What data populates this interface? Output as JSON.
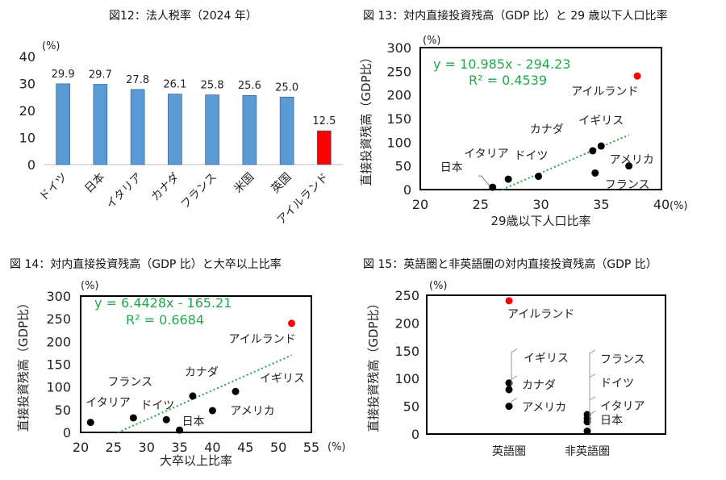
{
  "chart_data": [
    {
      "type": "bar",
      "title": "図12：法人税率（2024 年）",
      "unit_label": "(%)",
      "ylim": [
        0,
        40
      ],
      "yticks": [
        0,
        10,
        20,
        30,
        40
      ],
      "categories": [
        "ドイツ",
        "日本",
        "イタリア",
        "カナダ",
        "フランス",
        "米国",
        "英国",
        "アイルランド"
      ],
      "values": [
        29.9,
        29.7,
        27.8,
        26.1,
        25.8,
        25.6,
        25.0,
        12.5
      ],
      "value_labels": [
        "29.9",
        "29.7",
        "27.8",
        "26.1",
        "25.8",
        "25.6",
        "25.0",
        "12.5"
      ],
      "colors": [
        "#5b9bd5",
        "#5b9bd5",
        "#5b9bd5",
        "#5b9bd5",
        "#5b9bd5",
        "#5b9bd5",
        "#5b9bd5",
        "#ff0000"
      ]
    },
    {
      "type": "scatter",
      "title": "図 13：対内直接投資残高（GDP 比）と 29 歳以下人口比率",
      "xlabel": "29歳以下人口比率",
      "ylabel": "直接投資残高（GDP比）",
      "x_unit": "(%)",
      "y_unit": "(%)",
      "xlim": [
        20,
        40
      ],
      "ylim": [
        0,
        300
      ],
      "xticks": [
        20,
        25,
        30,
        35,
        40
      ],
      "yticks": [
        0,
        50,
        100,
        150,
        200,
        250,
        300
      ],
      "points": [
        {
          "label": "アイルランド",
          "x": 38.0,
          "y": 240,
          "color": "#ff0000"
        },
        {
          "label": "イギリス",
          "x": 35.0,
          "y": 92,
          "color": "#000000"
        },
        {
          "label": "カナダ",
          "x": 34.3,
          "y": 82,
          "color": "#000000"
        },
        {
          "label": "アメリカ",
          "x": 37.3,
          "y": 50,
          "color": "#000000"
        },
        {
          "label": "フランス",
          "x": 34.5,
          "y": 35,
          "color": "#000000"
        },
        {
          "label": "ドイツ",
          "x": 29.8,
          "y": 28,
          "color": "#000000"
        },
        {
          "label": "イタリア",
          "x": 27.3,
          "y": 22,
          "color": "#000000"
        },
        {
          "label": "日本",
          "x": 26.0,
          "y": 5,
          "color": "#000000"
        }
      ],
      "trendline": {
        "slope": 10.985,
        "intercept": -294.23,
        "x_range": [
          26.8,
          37.3
        ],
        "color": "#22a84a"
      },
      "equation": "y = 10.985x - 294.23",
      "r_squared": "R² = 0.4539"
    },
    {
      "type": "scatter",
      "title": "図 14：対内直接投資残高（GDP 比）と大卒以上比率",
      "xlabel": "大卒以上比率",
      "ylabel": "直接投資残高（GDP比）",
      "x_unit": "(%)",
      "y_unit": "(%)",
      "xlim": [
        20,
        55
      ],
      "ylim": [
        0,
        300
      ],
      "xticks": [
        20,
        25,
        30,
        35,
        40,
        45,
        50,
        55
      ],
      "yticks": [
        0,
        50,
        100,
        150,
        200,
        250,
        300
      ],
      "points": [
        {
          "label": "アイルランド",
          "x": 52.0,
          "y": 240,
          "color": "#ff0000"
        },
        {
          "label": "イギリス",
          "x": 43.5,
          "y": 90,
          "color": "#000000"
        },
        {
          "label": "カナダ",
          "x": 37.0,
          "y": 80,
          "color": "#000000"
        },
        {
          "label": "アメリカ",
          "x": 40.0,
          "y": 48,
          "color": "#000000"
        },
        {
          "label": "フランス",
          "x": 28.0,
          "y": 32,
          "color": "#000000"
        },
        {
          "label": "ドイツ",
          "x": 33.0,
          "y": 28,
          "color": "#000000"
        },
        {
          "label": "イタリア",
          "x": 21.5,
          "y": 22,
          "color": "#000000"
        },
        {
          "label": "日本",
          "x": 35.0,
          "y": 5,
          "color": "#000000"
        }
      ],
      "trendline": {
        "slope": 6.4428,
        "intercept": -165.21,
        "x_range": [
          25.6,
          52.0
        ],
        "color": "#22a84a"
      },
      "equation": "y = 6.4428x - 165.21",
      "r_squared": "R² = 0.6684"
    },
    {
      "type": "scatter",
      "title": "図 15：英語圏と非英語圏の対内直接投資残高（GDP 比）",
      "ylabel": "直接投資残高（GDP比）",
      "y_unit": "(%)",
      "ylim": [
        0,
        250
      ],
      "yticks": [
        0,
        50,
        100,
        150,
        200,
        250
      ],
      "categories": [
        "英語圏",
        "非英語圏"
      ],
      "points": [
        {
          "label": "アイルランド",
          "category": "英語圏",
          "y": 240,
          "color": "#ff0000"
        },
        {
          "label": "イギリス",
          "category": "英語圏",
          "y": 92,
          "color": "#000000"
        },
        {
          "label": "カナダ",
          "category": "英語圏",
          "y": 80,
          "color": "#000000"
        },
        {
          "label": "アメリカ",
          "category": "英語圏",
          "y": 50,
          "color": "#000000"
        },
        {
          "label": "フランス",
          "category": "非英語圏",
          "y": 35,
          "color": "#000000"
        },
        {
          "label": "ドイツ",
          "category": "非英語圏",
          "y": 28,
          "color": "#000000"
        },
        {
          "label": "イタリア",
          "category": "非英語圏",
          "y": 22,
          "color": "#000000"
        },
        {
          "label": "日本",
          "category": "非英語圏",
          "y": 5,
          "color": "#000000"
        }
      ]
    }
  ]
}
